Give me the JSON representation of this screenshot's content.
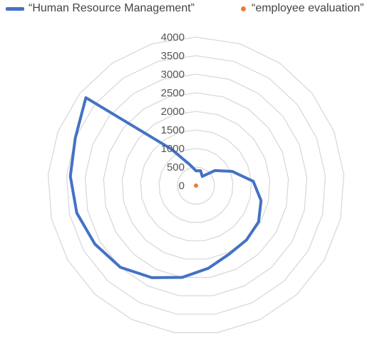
{
  "colors": {
    "grid": "#d9d9d9",
    "series0": "#4472c4",
    "series1": "#ed7d31",
    "text": "#555555"
  },
  "chart_data": {
    "type": "radar",
    "title": "",
    "grid": true,
    "legend_position": "top",
    "r_range": [
      0,
      4000
    ],
    "r_ticks": [
      "0",
      "500",
      "1000",
      "1500",
      "2000",
      "2500",
      "3000",
      "3500",
      "4000"
    ],
    "axis_count": 21,
    "series": [
      {
        "name": "“Human Resource Management”",
        "color": "#4472c4",
        "values": [
          400,
          420,
          300,
          650,
          1050,
          1550,
          1800,
          1950,
          2000,
          2050,
          2250,
          2500,
          2750,
          3000,
          3150,
          3300,
          3400,
          3500,
          3800,
          1200,
          600
        ]
      },
      {
        "name": "“employee evaluation”",
        "color": "#ed7d31",
        "values": [
          0,
          0,
          0,
          0,
          0,
          0,
          0,
          0,
          0,
          0,
          0,
          0,
          0,
          0,
          0,
          0,
          0,
          0,
          0,
          0,
          0
        ]
      }
    ]
  }
}
